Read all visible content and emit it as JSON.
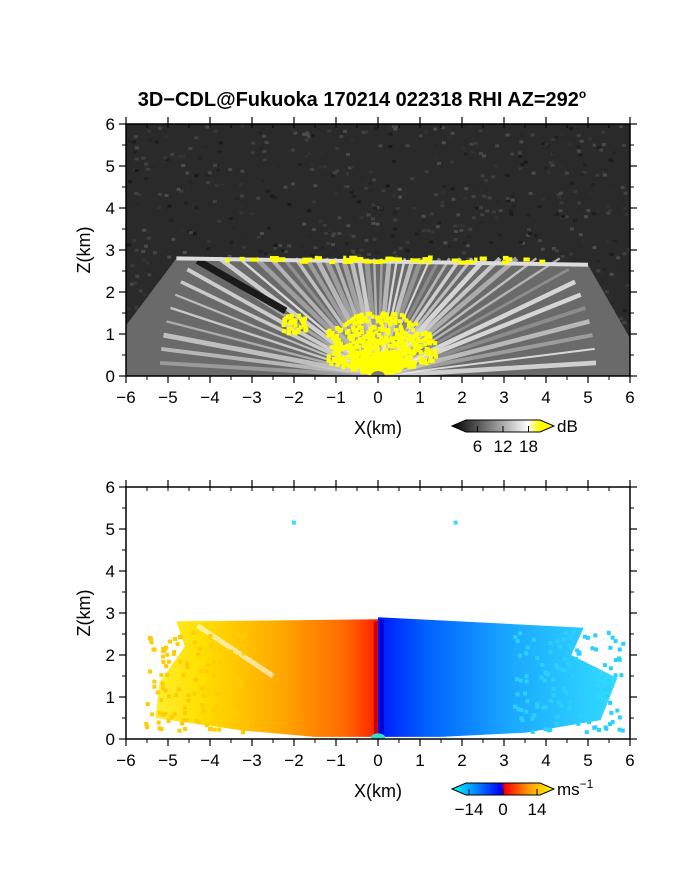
{
  "figure": {
    "title": "3D−CDL@Fukuoka 170214 022318 RHI AZ=292",
    "title_sup": "o"
  },
  "chart_data": [
    {
      "type": "heatmap",
      "quantity": "reflectivity",
      "xlabel": "X(km)",
      "ylabel": "Z(km)",
      "xlim": [
        -6,
        6
      ],
      "ylim": [
        0,
        6
      ],
      "xticks": [
        "−6",
        "−5",
        "−4",
        "−3",
        "−2",
        "−1",
        "0",
        "1",
        "2",
        "3",
        "4",
        "5",
        "6"
      ],
      "yticks": [
        "0",
        "1",
        "2",
        "3",
        "4",
        "5",
        "6"
      ],
      "colorbar": {
        "unit": "dB",
        "ticks": [
          "6",
          "12",
          "18"
        ],
        "tick_values": [
          6,
          12,
          18
        ],
        "range": [
          0,
          24
        ],
        "colors": [
          "#000000",
          "#ffffff",
          "#ffff00"
        ]
      },
      "features": {
        "echo_top_km": 2.8,
        "echo_extent_x_km": [
          -4.8,
          5.0
        ],
        "strong_echo_core": {
          "x_km": [
            -1.2,
            1.4
          ],
          "z_max_km": 1.5
        },
        "background": "noise"
      }
    },
    {
      "type": "heatmap",
      "quantity": "doppler velocity",
      "xlabel": "X(km)",
      "ylabel": "Z(km)",
      "xlim": [
        -6,
        6
      ],
      "ylim": [
        0,
        6
      ],
      "xticks": [
        "−6",
        "−5",
        "−4",
        "−3",
        "−2",
        "−1",
        "0",
        "1",
        "2",
        "3",
        "4",
        "5",
        "6"
      ],
      "yticks": [
        "0",
        "1",
        "2",
        "3",
        "4",
        "5",
        "6"
      ],
      "colorbar": {
        "unit": "ms",
        "unit_sup": "−1",
        "ticks": [
          "−14",
          "0",
          "14"
        ],
        "tick_values": [
          -14,
          0,
          14
        ],
        "range": [
          -21,
          21
        ],
        "colors": [
          "#00ffff",
          "#0000ff",
          "#ff0000",
          "#ffff00"
        ]
      },
      "features": {
        "echo_top_km": 2.8,
        "echo_extent_x_km": [
          -5.6,
          6.0
        ],
        "negative_x_side_velocity": "positive",
        "positive_x_side_velocity": "negative"
      }
    }
  ]
}
